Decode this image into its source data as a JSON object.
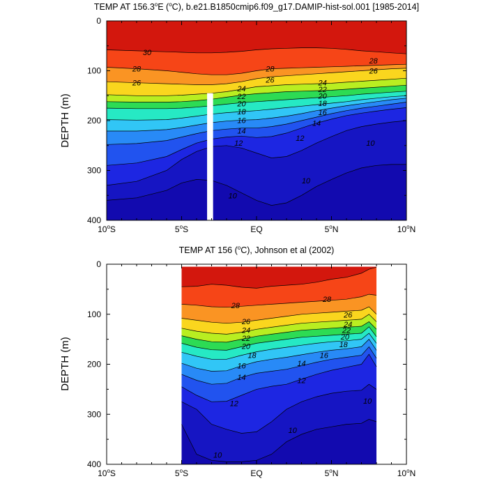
{
  "chart_data": [
    {
      "type": "contour",
      "title": "TEMP AT 156.3°E (°C), b.e21.B1850cmip6.f09_g17.DAMIP-hist-sol.001 [1985-2014]",
      "title_parts": {
        "pre": "TEMP AT 156.3",
        "sup1": "o",
        "mid": "E (",
        "sup2": "o",
        "post": "C), b.e21.B1850cmip6.f09_g17.DAMIP-hist-sol.001 [1985-2014]"
      },
      "ylabel": "DEPTH (m)",
      "xlim": [
        -10,
        10
      ],
      "ylim": [
        0,
        400
      ],
      "y_inverted": true,
      "x_ticks": [
        {
          "value": -10,
          "num": "10",
          "sup": "o",
          "hem": "S"
        },
        {
          "value": -5,
          "num": "5",
          "sup": "o",
          "hem": "S"
        },
        {
          "value": 0,
          "num": "EQ",
          "sup": "",
          "hem": ""
        },
        {
          "value": 5,
          "num": "5",
          "sup": "o",
          "hem": "N"
        },
        {
          "value": 10,
          "num": "10",
          "sup": "o",
          "hem": "N"
        }
      ],
      "y_ticks": [
        0,
        100,
        200,
        300,
        400
      ],
      "data_x_range": [
        -10,
        10
      ],
      "masked_column": {
        "x": [
          -3.3,
          -2.9
        ],
        "depth": [
          145,
          400
        ]
      },
      "contour_levels": [
        9,
        10,
        11,
        12,
        13,
        14,
        15,
        16,
        17,
        18,
        19,
        20,
        21,
        22,
        23,
        24,
        25,
        26,
        27,
        28,
        29,
        30
      ],
      "isotherm_depths": {
        "lat": [
          -10,
          -8,
          -6,
          -5,
          -4,
          -3,
          -2,
          -1,
          0,
          1,
          2,
          3,
          4,
          5,
          6,
          7,
          8,
          9,
          10
        ],
        "levels": {
          "30": [
            58,
            60,
            62,
            63,
            64,
            64,
            63,
            61,
            58,
            56,
            55,
            54,
            54,
            55,
            57,
            60,
            62,
            64,
            66
          ],
          "28": [
            93,
            96,
            100,
            103,
            106,
            108,
            108,
            105,
            100,
            96,
            95,
            94,
            93,
            92,
            91,
            90,
            89,
            88,
            87
          ],
          "26": [
            122,
            124,
            126,
            127,
            128,
            128,
            126,
            122,
            116,
            112,
            110,
            108,
            106,
            104,
            102,
            100,
            98,
            96,
            95
          ],
          "24": [
            148,
            150,
            150,
            149,
            147,
            145,
            142,
            137,
            132,
            130,
            128,
            127,
            126,
            125,
            123,
            121,
            119,
            117,
            115
          ],
          "22": [
            162,
            163,
            163,
            162,
            160,
            157,
            153,
            149,
            146,
            144,
            142,
            141,
            140,
            139,
            137,
            135,
            133,
            131,
            129
          ],
          "20": [
            175,
            176,
            176,
            175,
            173,
            170,
            167,
            164,
            162,
            160,
            158,
            156,
            154,
            152,
            150,
            147,
            145,
            143,
            141
          ],
          "18": [
            198,
            199,
            198,
            195,
            191,
            187,
            184,
            182,
            180,
            177,
            174,
            171,
            168,
            165,
            162,
            158,
            155,
            152,
            150
          ],
          "16": [
            221,
            221,
            218,
            214,
            209,
            204,
            201,
            199,
            198,
            195,
            191,
            186,
            180,
            175,
            170,
            166,
            162,
            158,
            155
          ],
          "14": [
            248,
            246,
            240,
            233,
            226,
            220,
            217,
            215,
            215,
            212,
            207,
            200,
            193,
            186,
            180,
            175,
            171,
            167,
            163
          ],
          "12": [
            290,
            285,
            272,
            258,
            245,
            237,
            233,
            231,
            234,
            232,
            225,
            215,
            205,
            197,
            190,
            185,
            181,
            177,
            174
          ],
          "10": [
            330,
            322,
            300,
            278,
            262,
            252,
            250,
            255,
            265,
            275,
            272,
            260,
            245,
            232,
            220,
            212,
            207,
            203,
            200
          ],
          "9": [
            360,
            355,
            340,
            325,
            318,
            320,
            330,
            345,
            360,
            370,
            365,
            350,
            332,
            318,
            305,
            295,
            290,
            288,
            288
          ]
        }
      },
      "contour_labels": [
        {
          "value": "30",
          "x": -7.3,
          "depth": 63
        },
        {
          "value": "28",
          "x": -8.0,
          "depth": 96
        },
        {
          "value": "28",
          "x": 0.9,
          "depth": 96
        },
        {
          "value": "28",
          "x": 7.8,
          "depth": 80
        },
        {
          "value": "26",
          "x": -8.0,
          "depth": 124
        },
        {
          "value": "26",
          "x": 0.9,
          "depth": 118
        },
        {
          "value": "26",
          "x": 7.8,
          "depth": 100
        },
        {
          "value": "24",
          "x": -1.0,
          "depth": 136
        },
        {
          "value": "24",
          "x": 4.4,
          "depth": 124
        },
        {
          "value": "22",
          "x": -1.0,
          "depth": 151
        },
        {
          "value": "22",
          "x": 4.4,
          "depth": 137
        },
        {
          "value": "20",
          "x": -1.0,
          "depth": 166
        },
        {
          "value": "20",
          "x": 4.4,
          "depth": 150
        },
        {
          "value": "18",
          "x": -1.0,
          "depth": 182
        },
        {
          "value": "18",
          "x": 4.4,
          "depth": 165
        },
        {
          "value": "16",
          "x": -1.0,
          "depth": 199
        },
        {
          "value": "16",
          "x": 4.4,
          "depth": 183
        },
        {
          "value": "14",
          "x": -1.0,
          "depth": 220
        },
        {
          "value": "14",
          "x": 4.0,
          "depth": 205
        },
        {
          "value": "12",
          "x": -1.2,
          "depth": 245
        },
        {
          "value": "12",
          "x": 2.9,
          "depth": 235
        },
        {
          "value": "10",
          "x": -1.6,
          "depth": 350
        },
        {
          "value": "10",
          "x": 3.3,
          "depth": 320
        },
        {
          "value": "10",
          "x": 7.6,
          "depth": 245
        }
      ]
    },
    {
      "type": "contour",
      "title": "TEMP AT 156 (°C), Johnson et al (2002)",
      "title_parts": {
        "pre": "TEMP AT 156 (",
        "sup1": "o",
        "post": "C), Johnson et al (2002)"
      },
      "ylabel": "DEPTH (m)",
      "xlim": [
        -10,
        10
      ],
      "ylim": [
        0,
        400
      ],
      "y_inverted": true,
      "x_ticks": [
        {
          "value": -10,
          "num": "10",
          "sup": "o",
          "hem": "S"
        },
        {
          "value": -5,
          "num": "5",
          "sup": "o",
          "hem": "S"
        },
        {
          "value": 0,
          "num": "EQ",
          "sup": "",
          "hem": ""
        },
        {
          "value": 5,
          "num": "5",
          "sup": "o",
          "hem": "N"
        },
        {
          "value": 10,
          "num": "10",
          "sup": "o",
          "hem": "N"
        }
      ],
      "y_ticks": [
        0,
        100,
        200,
        300,
        400
      ],
      "data_x_range": [
        -5,
        8
      ],
      "data_depth_range": [
        5,
        400
      ],
      "contour_levels": [
        9,
        10,
        11,
        12,
        13,
        14,
        15,
        16,
        17,
        18,
        19,
        20,
        21,
        22,
        23,
        24,
        25,
        26,
        27,
        28,
        29,
        30
      ],
      "isotherm_depths": {
        "lat": [
          -5,
          -4,
          -3,
          -2,
          -1,
          0,
          1,
          2,
          3,
          4,
          5,
          6,
          7,
          7.5,
          8
        ],
        "levels": {
          "30": [
            45,
            44,
            40,
            42,
            46,
            48,
            44,
            42,
            40,
            36,
            30,
            26,
            18,
            10,
            6
          ],
          "28": [
            80,
            82,
            85,
            86,
            84,
            82,
            80,
            78,
            76,
            74,
            72,
            70,
            65,
            60,
            62
          ],
          "26": [
            108,
            112,
            116,
            118,
            116,
            112,
            108,
            104,
            100,
            98,
            96,
            94,
            92,
            85,
            100
          ],
          "24": [
            128,
            134,
            138,
            140,
            136,
            130,
            126,
            122,
            118,
            116,
            114,
            112,
            110,
            100,
            115
          ],
          "22": [
            143,
            150,
            155,
            156,
            150,
            144,
            140,
            136,
            132,
            130,
            128,
            126,
            124,
            115,
            130
          ],
          "20": [
            158,
            166,
            171,
            172,
            165,
            158,
            154,
            150,
            146,
            144,
            142,
            140,
            138,
            125,
            145
          ],
          "18": [
            176,
            184,
            190,
            190,
            182,
            175,
            170,
            166,
            162,
            158,
            155,
            153,
            150,
            138,
            158
          ],
          "16": [
            198,
            208,
            214,
            213,
            203,
            195,
            190,
            186,
            181,
            176,
            172,
            169,
            165,
            150,
            172
          ],
          "14": [
            220,
            232,
            240,
            238,
            226,
            218,
            214,
            210,
            203,
            196,
            190,
            186,
            182,
            165,
            188
          ],
          "12": [
            245,
            262,
            275,
            274,
            262,
            250,
            244,
            240,
            230,
            220,
            212,
            206,
            200,
            180,
            205
          ],
          "10": [
            275,
            290,
            320,
            330,
            338,
            335,
            315,
            290,
            275,
            265,
            258,
            254,
            252,
            240,
            250
          ],
          "9": [
            320,
            380,
            392,
            395,
            395,
            392,
            380,
            355,
            340,
            330,
            325,
            320,
            318,
            310,
            315
          ]
        }
      },
      "contour_labels": [
        {
          "value": "28",
          "x": -1.4,
          "depth": 82
        },
        {
          "value": "28",
          "x": 4.7,
          "depth": 70
        },
        {
          "value": "26",
          "x": -0.7,
          "depth": 114
        },
        {
          "value": "26",
          "x": 6.1,
          "depth": 101
        },
        {
          "value": "24",
          "x": -0.7,
          "depth": 132
        },
        {
          "value": "24",
          "x": 6.1,
          "depth": 120
        },
        {
          "value": "22",
          "x": -0.7,
          "depth": 148
        },
        {
          "value": "22",
          "x": 6.0,
          "depth": 132
        },
        {
          "value": "20",
          "x": -0.7,
          "depth": 164
        },
        {
          "value": "20",
          "x": 5.9,
          "depth": 145
        },
        {
          "value": "18",
          "x": -0.3,
          "depth": 182
        },
        {
          "value": "18",
          "x": 5.8,
          "depth": 160
        },
        {
          "value": "16",
          "x": -1.0,
          "depth": 203
        },
        {
          "value": "16",
          "x": 4.5,
          "depth": 182
        },
        {
          "value": "14",
          "x": -1.0,
          "depth": 226
        },
        {
          "value": "14",
          "x": 3.0,
          "depth": 198
        },
        {
          "value": "12",
          "x": 3.0,
          "depth": 232
        },
        {
          "value": "12",
          "x": -1.5,
          "depth": 278
        },
        {
          "value": "10",
          "x": 7.4,
          "depth": 273
        },
        {
          "value": "10",
          "x": 2.4,
          "depth": 332
        },
        {
          "value": "10",
          "x": -2.6,
          "depth": 381
        }
      ]
    }
  ]
}
